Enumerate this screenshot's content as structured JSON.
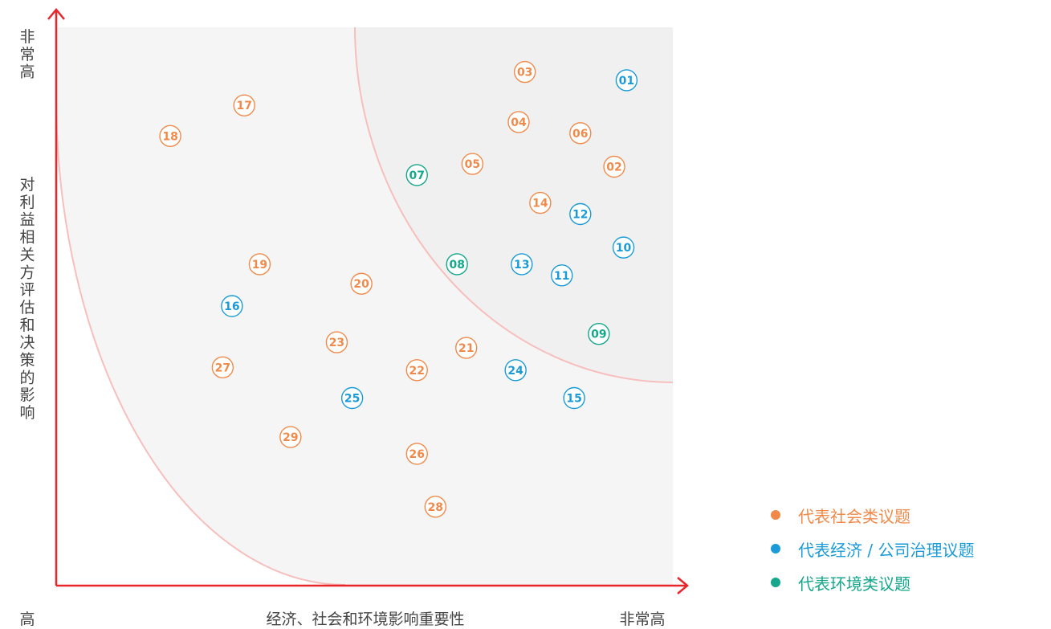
{
  "chart_data": {
    "type": "scatter",
    "title": "",
    "xlabel": "经济、社会和环境影响重要性",
    "ylabel": "对利益相关方评估和决策的影响",
    "x_low_label": "高",
    "x_high_label": "非常高",
    "y_high_label": "非常高",
    "xlim": [
      0,
      100
    ],
    "ylim": [
      0,
      100
    ],
    "grid": false,
    "legend_position": "bottom-right",
    "series": [
      {
        "name": "代表社会类议题",
        "color": "#f08a4b",
        "points": [
          {
            "label": "02",
            "x": 90.5,
            "y": 75.0
          },
          {
            "label": "03",
            "x": 76.0,
            "y": 92.0
          },
          {
            "label": "04",
            "x": 75.0,
            "y": 83.0
          },
          {
            "label": "05",
            "x": 67.5,
            "y": 75.5
          },
          {
            "label": "06",
            "x": 85.0,
            "y": 81.0
          },
          {
            "label": "14",
            "x": 78.5,
            "y": 68.5
          },
          {
            "label": "17",
            "x": 30.5,
            "y": 86.0
          },
          {
            "label": "18",
            "x": 18.5,
            "y": 80.5
          },
          {
            "label": "19",
            "x": 33.0,
            "y": 57.5
          },
          {
            "label": "20",
            "x": 49.5,
            "y": 54.0
          },
          {
            "label": "21",
            "x": 66.5,
            "y": 42.5
          },
          {
            "label": "22",
            "x": 58.5,
            "y": 38.5
          },
          {
            "label": "23",
            "x": 45.5,
            "y": 43.5
          },
          {
            "label": "26",
            "x": 58.5,
            "y": 23.5
          },
          {
            "label": "27",
            "x": 27.0,
            "y": 39.0
          },
          {
            "label": "28",
            "x": 61.5,
            "y": 14.0
          },
          {
            "label": "29",
            "x": 38.0,
            "y": 26.5
          }
        ]
      },
      {
        "name": "代表经济 / 公司治理议题",
        "color": "#1a9bd7",
        "points": [
          {
            "label": "01",
            "x": 92.5,
            "y": 90.5
          },
          {
            "label": "10",
            "x": 92.0,
            "y": 60.5
          },
          {
            "label": "11",
            "x": 82.0,
            "y": 55.5
          },
          {
            "label": "12",
            "x": 85.0,
            "y": 66.5
          },
          {
            "label": "13",
            "x": 75.5,
            "y": 57.5
          },
          {
            "label": "15",
            "x": 84.0,
            "y": 33.5
          },
          {
            "label": "16",
            "x": 28.5,
            "y": 50.0
          },
          {
            "label": "24",
            "x": 74.5,
            "y": 38.5
          },
          {
            "label": "25",
            "x": 48.0,
            "y": 33.5
          }
        ]
      },
      {
        "name": "代表环境类议题",
        "color": "#14a78b",
        "points": [
          {
            "label": "07",
            "x": 58.5,
            "y": 73.5
          },
          {
            "label": "08",
            "x": 65.0,
            "y": 57.5
          },
          {
            "label": "09",
            "x": 88.0,
            "y": 45.0
          }
        ]
      }
    ]
  },
  "style": {
    "axis_color": "#e8262a",
    "zone_fill": "#f5f5f5",
    "zone_fill_inner": "#f0f0f0",
    "arc_color": "#f6bfbd",
    "axis_text_color": "#444444"
  }
}
